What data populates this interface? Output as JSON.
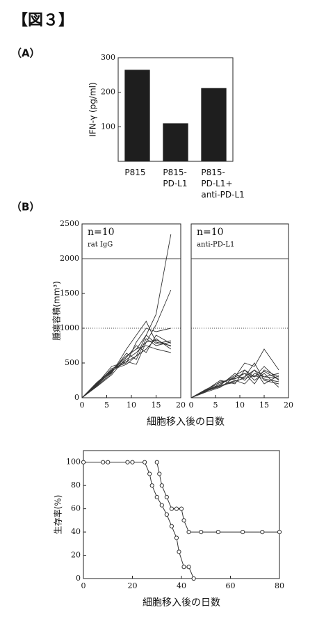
{
  "figure_label": "【図３】",
  "panel_labels": [
    "（A）",
    "（B）"
  ],
  "chart_data": [
    {
      "type": "bar",
      "ylabel": "IFN-γ (pg/ml)",
      "categories": [
        "P815",
        "P815-\nPD-L1",
        "P815-\nPD-L1+\nanti-PD-L1"
      ],
      "values": [
        265,
        110,
        212
      ],
      "color": "#1e1e1e",
      "ylim": [
        0,
        300
      ],
      "yticks": [
        100,
        200,
        300
      ]
    },
    {
      "type": "line",
      "ylabel": "腫瘍容積(mm³)",
      "xlabel": "細胞移入後の日数",
      "annotations": [
        "n=10",
        "rat IgG"
      ],
      "color": "#333333",
      "xlim": [
        0,
        20
      ],
      "xticks": [
        0,
        5,
        10,
        15,
        20
      ],
      "ylim": [
        0,
        2500
      ],
      "yticks": [
        0,
        500,
        1000,
        1500,
        2000,
        2500
      ],
      "reference_lines": [
        {
          "value": 1000,
          "style": "dotted"
        },
        {
          "value": 2000,
          "style": "solid"
        }
      ],
      "x": [
        0,
        3,
        6,
        9,
        11,
        13,
        15,
        18
      ],
      "series": [
        {
          "values": [
            0,
            200,
            400,
            600,
            700,
            900,
            1200,
            2350
          ]
        },
        {
          "values": [
            0,
            180,
            380,
            550,
            650,
            800,
            1050,
            1550
          ]
        },
        {
          "values": [
            0,
            190,
            420,
            500,
            800,
            1000,
            950,
            1000
          ]
        },
        {
          "values": [
            0,
            210,
            360,
            640,
            550,
            850,
            750,
            800
          ]
        },
        {
          "values": [
            0,
            170,
            350,
            700,
            900,
            1100,
            800,
            750
          ]
        },
        {
          "values": [
            0,
            200,
            450,
            520,
            600,
            700,
            850,
            700
          ]
        },
        {
          "values": [
            0,
            160,
            330,
            580,
            750,
            650,
            900,
            780
          ]
        },
        {
          "values": [
            0,
            220,
            400,
            480,
            600,
            900,
            780,
            820
          ]
        },
        {
          "values": [
            0,
            190,
            370,
            600,
            700,
            750,
            700,
            650
          ]
        },
        {
          "values": [
            0,
            180,
            390,
            520,
            480,
            800,
            830,
            740
          ]
        }
      ]
    },
    {
      "type": "line",
      "annotations": [
        "n=10",
        "anti-PD-L1"
      ],
      "color": "#333333",
      "xlim": [
        0,
        20
      ],
      "xticks": [
        0,
        5,
        10,
        15,
        20
      ],
      "ylim": [
        0,
        2500
      ],
      "reference_lines": [
        {
          "value": 1000,
          "style": "dotted"
        },
        {
          "value": 2000,
          "style": "solid"
        }
      ],
      "x": [
        0,
        3,
        6,
        9,
        11,
        13,
        15,
        18
      ],
      "series": [
        {
          "values": [
            0,
            100,
            200,
            300,
            500,
            450,
            700,
            400
          ]
        },
        {
          "values": [
            0,
            90,
            180,
            350,
            250,
            400,
            300,
            350
          ]
        },
        {
          "values": [
            0,
            110,
            250,
            200,
            400,
            300,
            450,
            250
          ]
        },
        {
          "values": [
            0,
            80,
            150,
            300,
            350,
            200,
            400,
            300
          ]
        },
        {
          "values": [
            0,
            120,
            220,
            280,
            300,
            500,
            250,
            200
          ]
        },
        {
          "values": [
            0,
            100,
            170,
            250,
            200,
            350,
            300,
            280
          ]
        },
        {
          "values": [
            0,
            90,
            200,
            320,
            400,
            250,
            350,
            150
          ]
        },
        {
          "values": [
            0,
            110,
            180,
            220,
            300,
            400,
            200,
            320
          ]
        },
        {
          "values": [
            0,
            100,
            230,
            270,
            350,
            300,
            380,
            260
          ]
        },
        {
          "values": [
            0,
            95,
            160,
            240,
            280,
            320,
            270,
            230
          ]
        }
      ]
    },
    {
      "type": "survival",
      "ylabel": "生存率(%)",
      "xlabel": "細胞移入後の日数",
      "color": "#333333",
      "xlim": [
        0,
        80
      ],
      "xticks": [
        0,
        20,
        40,
        60,
        80
      ],
      "ylim": [
        0,
        110
      ],
      "yticks": [
        0,
        20,
        40,
        60,
        80,
        100
      ],
      "series": [
        {
          "x": [
            0,
            8,
            10,
            18,
            20,
            25,
            27,
            28,
            30,
            32,
            34,
            36,
            38,
            39,
            41,
            43,
            45
          ],
          "values": [
            100,
            100,
            100,
            100,
            100,
            100,
            90,
            80,
            70,
            63,
            55,
            45,
            35,
            23,
            10,
            10,
            0
          ]
        },
        {
          "x": [
            30,
            31,
            32,
            34,
            36,
            38,
            40,
            41,
            43,
            48,
            55,
            65,
            73,
            80
          ],
          "values": [
            100,
            90,
            80,
            70,
            60,
            60,
            60,
            50,
            40,
            40,
            40,
            40,
            40,
            40
          ]
        }
      ]
    }
  ]
}
